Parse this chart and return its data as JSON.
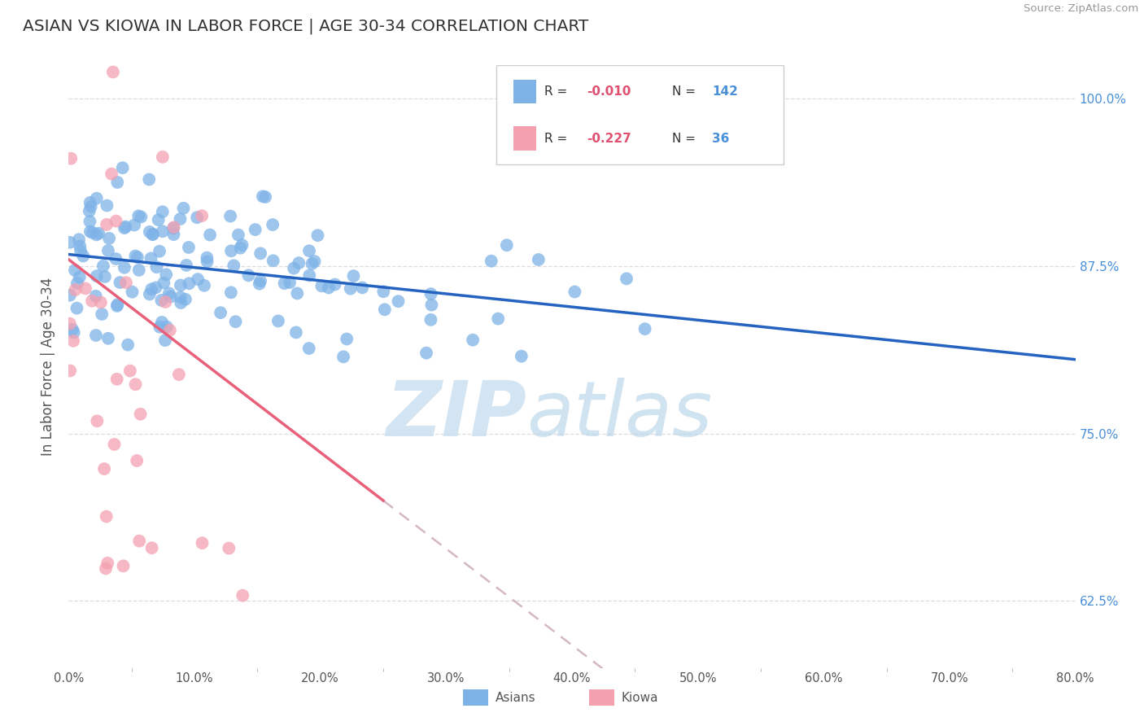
{
  "title": "ASIAN VS KIOWA IN LABOR FORCE | AGE 30-34 CORRELATION CHART",
  "source": "Source: ZipAtlas.com",
  "ylabel": "In Labor Force | Age 30-34",
  "xlim": [
    0.0,
    0.8
  ],
  "ylim": [
    0.575,
    1.025
  ],
  "xticks": [
    0.0,
    0.1,
    0.2,
    0.3,
    0.4,
    0.5,
    0.6,
    0.7,
    0.8
  ],
  "xticklabels": [
    "0.0%",
    "10.0%",
    "20.0%",
    "30.0%",
    "40.0%",
    "50.0%",
    "60.0%",
    "70.0%",
    "80.0%"
  ],
  "yticks": [
    0.625,
    0.75,
    0.875,
    1.0
  ],
  "yticklabels": [
    "62.5%",
    "75.0%",
    "87.5%",
    "100.0%"
  ],
  "asian_R": -0.01,
  "asian_N": 142,
  "kiowa_R": -0.227,
  "kiowa_N": 36,
  "asian_color": "#7eb3e8",
  "kiowa_color": "#f4a0b0",
  "asian_line_color": "#2563c0",
  "kiowa_line_color": "#e8607a",
  "trend_dash_color": "#d4b8c0",
  "background_color": "#ffffff",
  "grid_color": "#dddddd",
  "title_color": "#333333",
  "axis_label_color": "#555555",
  "tick_label_color_right": "#4a90d9",
  "legend_R_color": "#e05070",
  "legend_N_color": "#4a90d9",
  "watermark_color": "#d8e8f0"
}
